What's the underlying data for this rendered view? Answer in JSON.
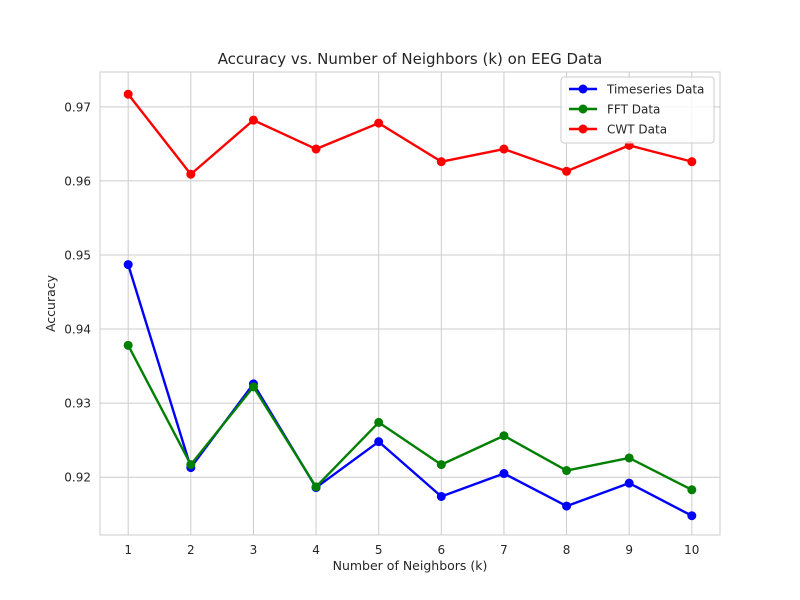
{
  "chart_data": {
    "type": "line",
    "title": "Accuracy vs. Number of Neighbors (k) on EEG Data",
    "xlabel": "Number of Neighbors (k)",
    "ylabel": "Accuracy",
    "x": [
      1,
      2,
      3,
      4,
      5,
      6,
      7,
      8,
      9,
      10
    ],
    "xlim": [
      0.55,
      10.45
    ],
    "ylim": [
      0.9122,
      0.9747
    ],
    "yticks": [
      0.92,
      0.93,
      0.94,
      0.95,
      0.96,
      0.97
    ],
    "ytick_labels": [
      "0.92",
      "0.93",
      "0.94",
      "0.95",
      "0.96",
      "0.97"
    ],
    "xtick_labels": [
      "1",
      "2",
      "3",
      "4",
      "5",
      "6",
      "7",
      "8",
      "9",
      "10"
    ],
    "grid": true,
    "legend_position": "top-right",
    "series": [
      {
        "name": "Timeseries Data",
        "color": "#0000ff",
        "values": [
          0.9487,
          0.9213,
          0.9326,
          0.9186,
          0.9248,
          0.9174,
          0.9205,
          0.9161,
          0.9192,
          0.9148
        ]
      },
      {
        "name": "FFT Data",
        "color": "#008000",
        "values": [
          0.9378,
          0.9217,
          0.9322,
          0.9187,
          0.9274,
          0.9217,
          0.9256,
          0.9209,
          0.9226,
          0.9183
        ]
      },
      {
        "name": "CWT Data",
        "color": "#ff0000",
        "values": [
          0.9717,
          0.9609,
          0.9682,
          0.9643,
          0.9678,
          0.9626,
          0.9643,
          0.9613,
          0.9648,
          0.9626
        ]
      }
    ]
  }
}
